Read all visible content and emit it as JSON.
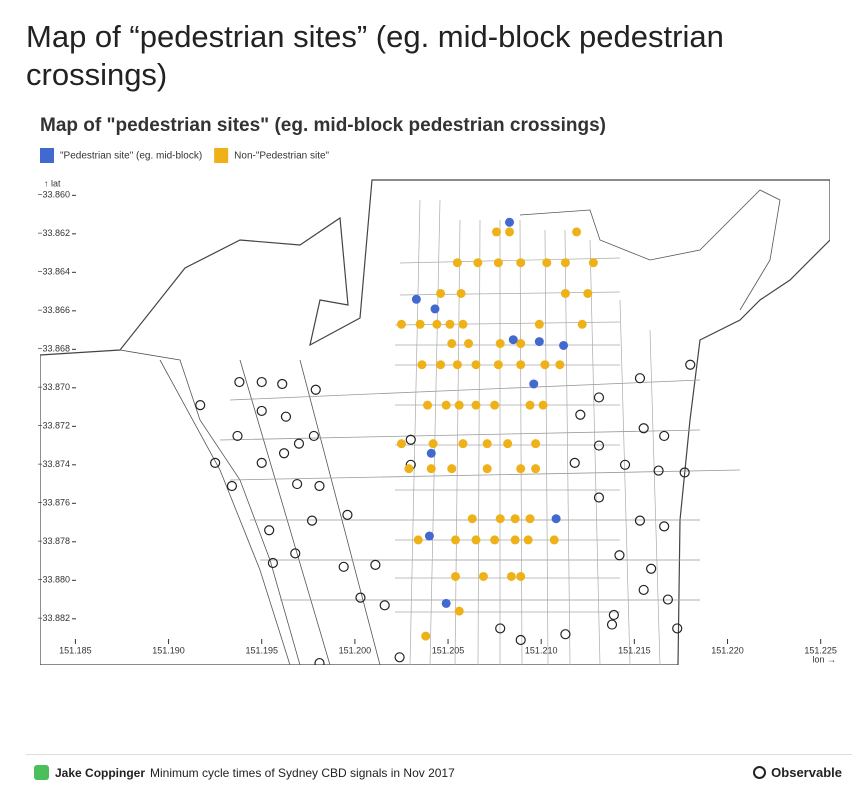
{
  "header": {
    "title": "Map of “pedestrian sites” (eg. mid-block pedestrian crossings)"
  },
  "chart_data": {
    "type": "scatter",
    "title": "Map of \"pedestrian sites\" (eg. mid-block pedestrian crossings)",
    "x_label": "lon →",
    "y_label": "↑ lat",
    "xlim": [
      151.1831,
      151.2255
    ],
    "ylim": [
      -33.8844,
      -33.8591
    ],
    "xticks": [
      151.185,
      {
        "value": 151.19,
        "label": "151.190"
      },
      151.195,
      {
        "value": 151.2,
        "label": "151.200"
      },
      151.205,
      {
        "value": 151.21,
        "label": "151.210"
      },
      151.215,
      {
        "value": 151.22,
        "label": "151.220"
      },
      151.225
    ],
    "yticks": [
      {
        "value": -33.86,
        "label": "−33.860"
      },
      {
        "value": -33.862,
        "label": "−33.862"
      },
      {
        "value": -33.864,
        "label": "−33.864"
      },
      {
        "value": -33.866,
        "label": "−33.866"
      },
      {
        "value": -33.868,
        "label": "−33.868"
      },
      {
        "value": -33.87,
        "label": "−33.870"
      },
      {
        "value": -33.872,
        "label": "−33.872"
      },
      {
        "value": -33.874,
        "label": "−33.874"
      },
      {
        "value": -33.876,
        "label": "−33.876"
      },
      {
        "value": -33.878,
        "label": "−33.878"
      },
      {
        "value": -33.88,
        "label": "−33.880"
      },
      {
        "value": -33.882,
        "label": "−33.882"
      }
    ],
    "series": [
      {
        "name": "\"Pedestrian site\" (eg. mid-block)",
        "color": "#4269d0",
        "x": [
          151.2083,
          151.2033,
          151.2043,
          151.2085,
          151.2099,
          151.2112,
          151.2096,
          151.2041,
          151.2108,
          151.204,
          151.2049
        ],
        "values": [
          -33.8614,
          -33.8654,
          -33.8659,
          -33.8675,
          -33.8676,
          -33.8678,
          -33.8698,
          -33.8734,
          -33.8768,
          -33.8777,
          -33.8812
        ]
      },
      {
        "name": "Non-\"Pedestrian site\"",
        "color": "#efb118",
        "x": [
          151.2076,
          151.2083,
          151.2119,
          151.2055,
          151.2066,
          151.2077,
          151.2089,
          151.2103,
          151.2113,
          151.2128,
          151.2046,
          151.2057,
          151.2113,
          151.2125,
          151.2025,
          151.2035,
          151.2044,
          151.2051,
          151.2058,
          151.2099,
          151.2122,
          151.2052,
          151.2061,
          151.2078,
          151.2089,
          151.2036,
          151.2046,
          151.2055,
          151.2065,
          151.2077,
          151.2089,
          151.2102,
          151.211,
          151.2039,
          151.2049,
          151.2056,
          151.2065,
          151.2075,
          151.2094,
          151.2101,
          151.2025,
          151.2042,
          151.2058,
          151.2071,
          151.2082,
          151.2097,
          151.2029,
          151.2041,
          151.2052,
          151.2071,
          151.2089,
          151.2097,
          151.2063,
          151.2078,
          151.2086,
          151.2094,
          151.2034,
          151.2054,
          151.2065,
          151.2075,
          151.2086,
          151.2093,
          151.2107,
          151.2054,
          151.2069,
          151.2084,
          151.2089,
          151.2056,
          151.2038
        ],
        "values": [
          -33.8619,
          -33.8619,
          -33.8619,
          -33.8635,
          -33.8635,
          -33.8635,
          -33.8635,
          -33.8635,
          -33.8635,
          -33.8635,
          -33.8651,
          -33.8651,
          -33.8651,
          -33.8651,
          -33.8667,
          -33.8667,
          -33.8667,
          -33.8667,
          -33.8667,
          -33.8667,
          -33.8667,
          -33.8677,
          -33.8677,
          -33.8677,
          -33.8677,
          -33.8688,
          -33.8688,
          -33.8688,
          -33.8688,
          -33.8688,
          -33.8688,
          -33.8688,
          -33.8688,
          -33.8709,
          -33.8709,
          -33.8709,
          -33.8709,
          -33.8709,
          -33.8709,
          -33.8709,
          -33.8729,
          -33.8729,
          -33.8729,
          -33.8729,
          -33.8729,
          -33.8729,
          -33.8742,
          -33.8742,
          -33.8742,
          -33.8742,
          -33.8742,
          -33.8742,
          -33.8768,
          -33.8768,
          -33.8768,
          -33.8768,
          -33.8779,
          -33.8779,
          -33.8779,
          -33.8779,
          -33.8779,
          -33.8779,
          -33.8779,
          -33.8798,
          -33.8798,
          -33.8798,
          -33.8798,
          -33.8816,
          -33.8829
        ]
      },
      {
        "color": "#222222",
        "hollow": true,
        "x": [
          151.1938,
          151.195,
          151.1961,
          151.1979,
          151.1917,
          151.1937,
          151.195,
          151.1963,
          151.197,
          151.1925,
          151.195,
          151.1962,
          151.1978,
          151.1934,
          151.1969,
          151.1981,
          151.1954,
          151.1977,
          151.1996,
          151.1956,
          151.1968,
          151.1994,
          151.2011,
          151.2003,
          151.2016,
          151.1981,
          151.2024,
          151.2078,
          151.2113,
          151.2138,
          151.2155,
          151.2142,
          151.2159,
          151.2168,
          151.2173,
          151.2153,
          151.2166,
          151.2145,
          151.2163,
          151.2177,
          151.2155,
          151.2166,
          151.218,
          151.2153,
          151.2131,
          151.2121,
          151.2131,
          151.2118,
          151.2131,
          151.2139,
          151.2089,
          151.203,
          151.203
        ],
        "values": [
          -33.8697,
          -33.8697,
          -33.8698,
          -33.8701,
          -33.8709,
          -33.8725,
          -33.8712,
          -33.8715,
          -33.8729,
          -33.8739,
          -33.8739,
          -33.8734,
          -33.8725,
          -33.8751,
          -33.875,
          -33.8751,
          -33.8774,
          -33.8769,
          -33.8766,
          -33.8791,
          -33.8786,
          -33.8793,
          -33.8792,
          -33.8809,
          -33.8813,
          -33.8843,
          -33.884,
          -33.8825,
          -33.8828,
          -33.8823,
          -33.8805,
          -33.8787,
          -33.8794,
          -33.881,
          -33.8825,
          -33.8769,
          -33.8772,
          -33.874,
          -33.8743,
          -33.8744,
          -33.8721,
          -33.8725,
          -33.8688,
          -33.8695,
          -33.8705,
          -33.8714,
          -33.873,
          -33.8739,
          -33.8757,
          -33.8818,
          -33.8831,
          -33.8727,
          -33.874
        ]
      }
    ]
  },
  "footer": {
    "author": "Jake Coppinger",
    "description": "Minimum cycle times of Sydney CBD signals in Nov 2017",
    "brand": "Observable"
  }
}
